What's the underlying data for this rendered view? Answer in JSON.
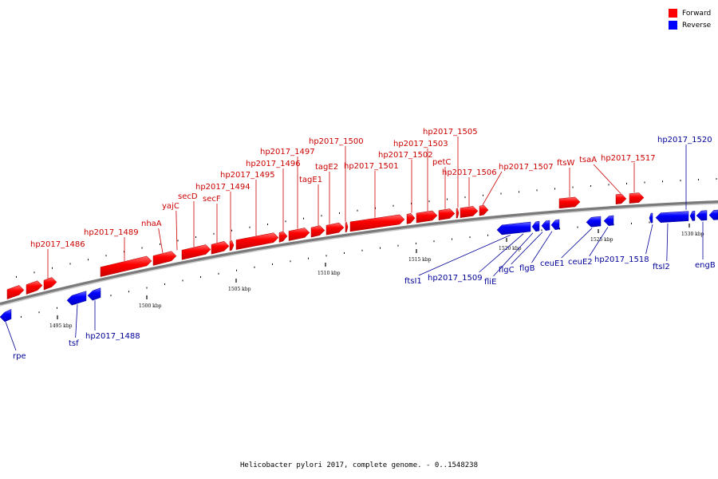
{
  "legend": {
    "items": [
      {
        "label": "Forward",
        "color": "#ff0000"
      },
      {
        "label": "Reverse",
        "color": "#0000ff"
      }
    ]
  },
  "caption": "Helicobacter pylori 2017, complete genome. - 0..1548238",
  "ticks": [
    "1495 kbp",
    "1500 kbp",
    "1505 kbp",
    "1510 kbp",
    "1515 kbp",
    "1520 kbp",
    "1525 kbp",
    "1530 kbp"
  ],
  "forward_labels": [
    "hp2017_1486",
    "hp2017_1489",
    "nhaA",
    "yajC",
    "secD",
    "secF",
    "hp2017_1494",
    "hp2017_1495",
    "hp2017_1496",
    "hp2017_1497",
    "tagE1",
    "tagE2",
    "hp2017_1500",
    "hp2017_1501",
    "hp2017_1502",
    "hp2017_1503",
    "petC",
    "hp2017_1505",
    "hp2017_1506",
    "hp2017_1507",
    "ftsW",
    "tsaA",
    "hp2017_1517"
  ],
  "reverse_labels": [
    "rpe",
    "tsf",
    "hp2017_1488",
    "ftsI1",
    "hp2017_1509",
    "fliE",
    "flgC",
    "flgB",
    "ceuE1",
    "ceuE2",
    "hp2017_1518",
    "hp2017_1520",
    "ftsI2",
    "engB"
  ],
  "colors": {
    "forward": "#ff0000",
    "reverse": "#0000ff",
    "forward_label": "#cc0000",
    "reverse_label": "#000099",
    "backbone": "#808080"
  }
}
